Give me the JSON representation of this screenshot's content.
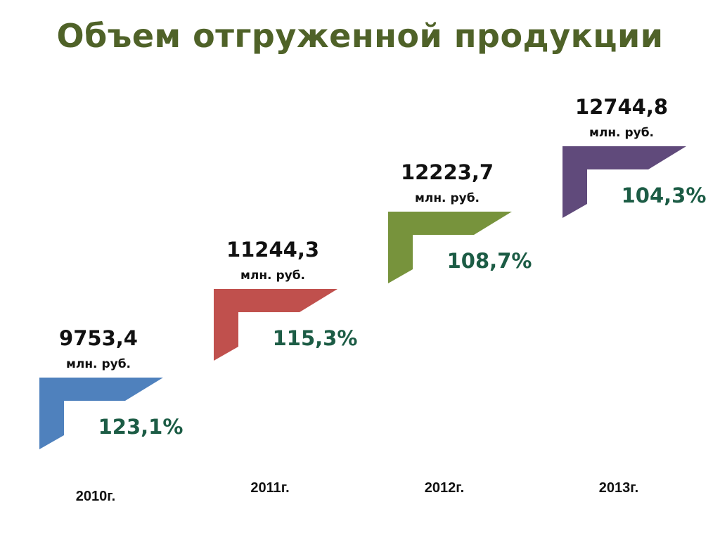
{
  "title": "Объем отгруженной продукции",
  "chart_data": {
    "type": "bar",
    "title": "Объем отгруженной продукции",
    "categories": [
      "2010г.",
      "2011г.",
      "2012г.",
      "2013г."
    ],
    "values": [
      9753.4,
      11244.3,
      12223.7,
      12744.8
    ],
    "value_labels": [
      "9753,4",
      "11244,3",
      "12223,7",
      "12744,8"
    ],
    "unit": "млн. руб.",
    "growth_labels": [
      "123,1%",
      "115,3%",
      "108,7%",
      "104,3%"
    ],
    "growth_values": [
      123.1,
      115.3,
      108.7,
      104.3
    ],
    "colors": [
      "#4f81bd",
      "#c0504d",
      "#77933c",
      "#604a7b"
    ],
    "growth_color": "#1c5c45",
    "legend": "none",
    "grid": false
  }
}
